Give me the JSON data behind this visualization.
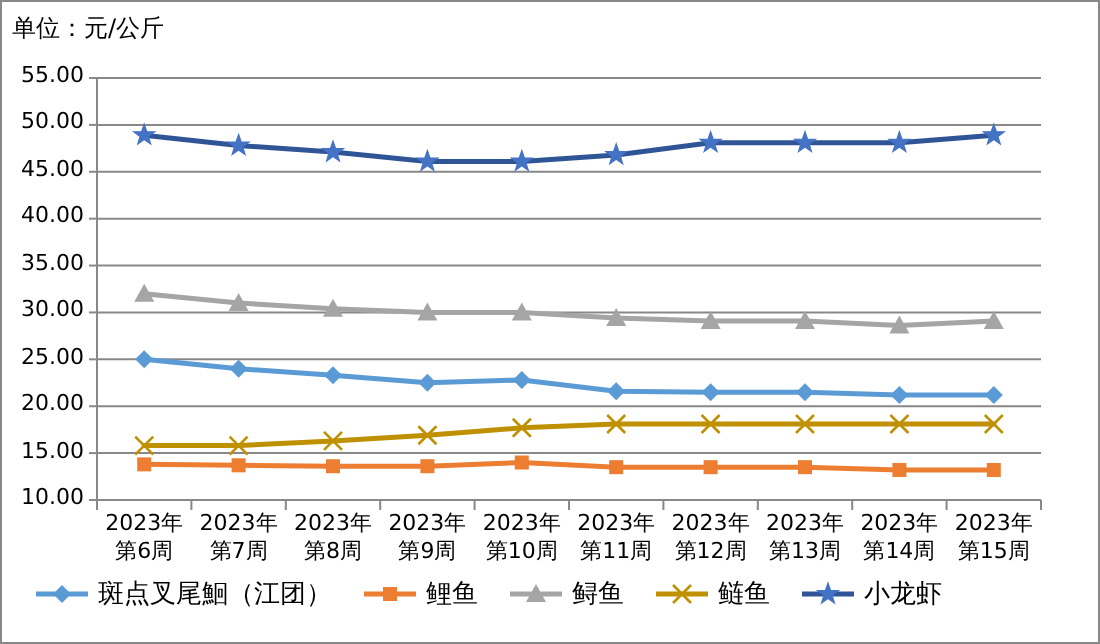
{
  "chart_data": {
    "type": "line",
    "ylabel": "单位：元/公斤",
    "categories": [
      "2023年第6周",
      "2023年第7周",
      "2023年第8周",
      "2023年第9周",
      "2023年第10周",
      "2023年第11周",
      "2023年第12周",
      "2023年第13周",
      "2023年第14周",
      "2023年第15周"
    ],
    "series": [
      {
        "name": "斑点叉尾鮰（江团）",
        "color": "#5b9bd5",
        "marker": "diamond",
        "values": [
          25.0,
          24.0,
          23.3,
          22.5,
          22.8,
          21.6,
          21.5,
          21.5,
          21.2,
          21.2
        ]
      },
      {
        "name": "鲤鱼",
        "color": "#ed7d31",
        "marker": "square",
        "values": [
          13.8,
          13.7,
          13.6,
          13.6,
          14.0,
          13.5,
          13.5,
          13.5,
          13.2,
          13.2
        ]
      },
      {
        "name": "鲟鱼",
        "color": "#a5a5a5",
        "marker": "triangle",
        "values": [
          32.0,
          31.0,
          30.4,
          30.0,
          30.0,
          29.4,
          29.1,
          29.1,
          28.6,
          29.1
        ]
      },
      {
        "name": "鲢鱼",
        "color": "#bf9000",
        "marker": "cross",
        "values": [
          15.8,
          15.8,
          16.3,
          16.9,
          17.7,
          18.1,
          18.1,
          18.1,
          18.1,
          18.1
        ]
      },
      {
        "name": "小龙虾",
        "color": "#2f5597",
        "marker": "star",
        "values": [
          48.9,
          47.8,
          47.1,
          46.1,
          46.1,
          46.8,
          48.1,
          48.1,
          48.1,
          48.9
        ]
      }
    ],
    "ylim": [
      10,
      55
    ],
    "yticks": [
      {
        "value": 10,
        "label": "10.00"
      },
      {
        "value": 15,
        "label": "15.00"
      },
      {
        "value": 20,
        "label": "20.00"
      },
      {
        "value": 25,
        "label": "25.00"
      },
      {
        "value": 30,
        "label": "30.00"
      },
      {
        "value": 35,
        "label": "35.00"
      },
      {
        "value": 40,
        "label": "40.00"
      },
      {
        "value": 45,
        "label": "45.00"
      },
      {
        "value": 50,
        "label": "50.00"
      },
      {
        "value": 55,
        "label": "55.00"
      }
    ],
    "grid": "y",
    "legend": "bottom"
  }
}
